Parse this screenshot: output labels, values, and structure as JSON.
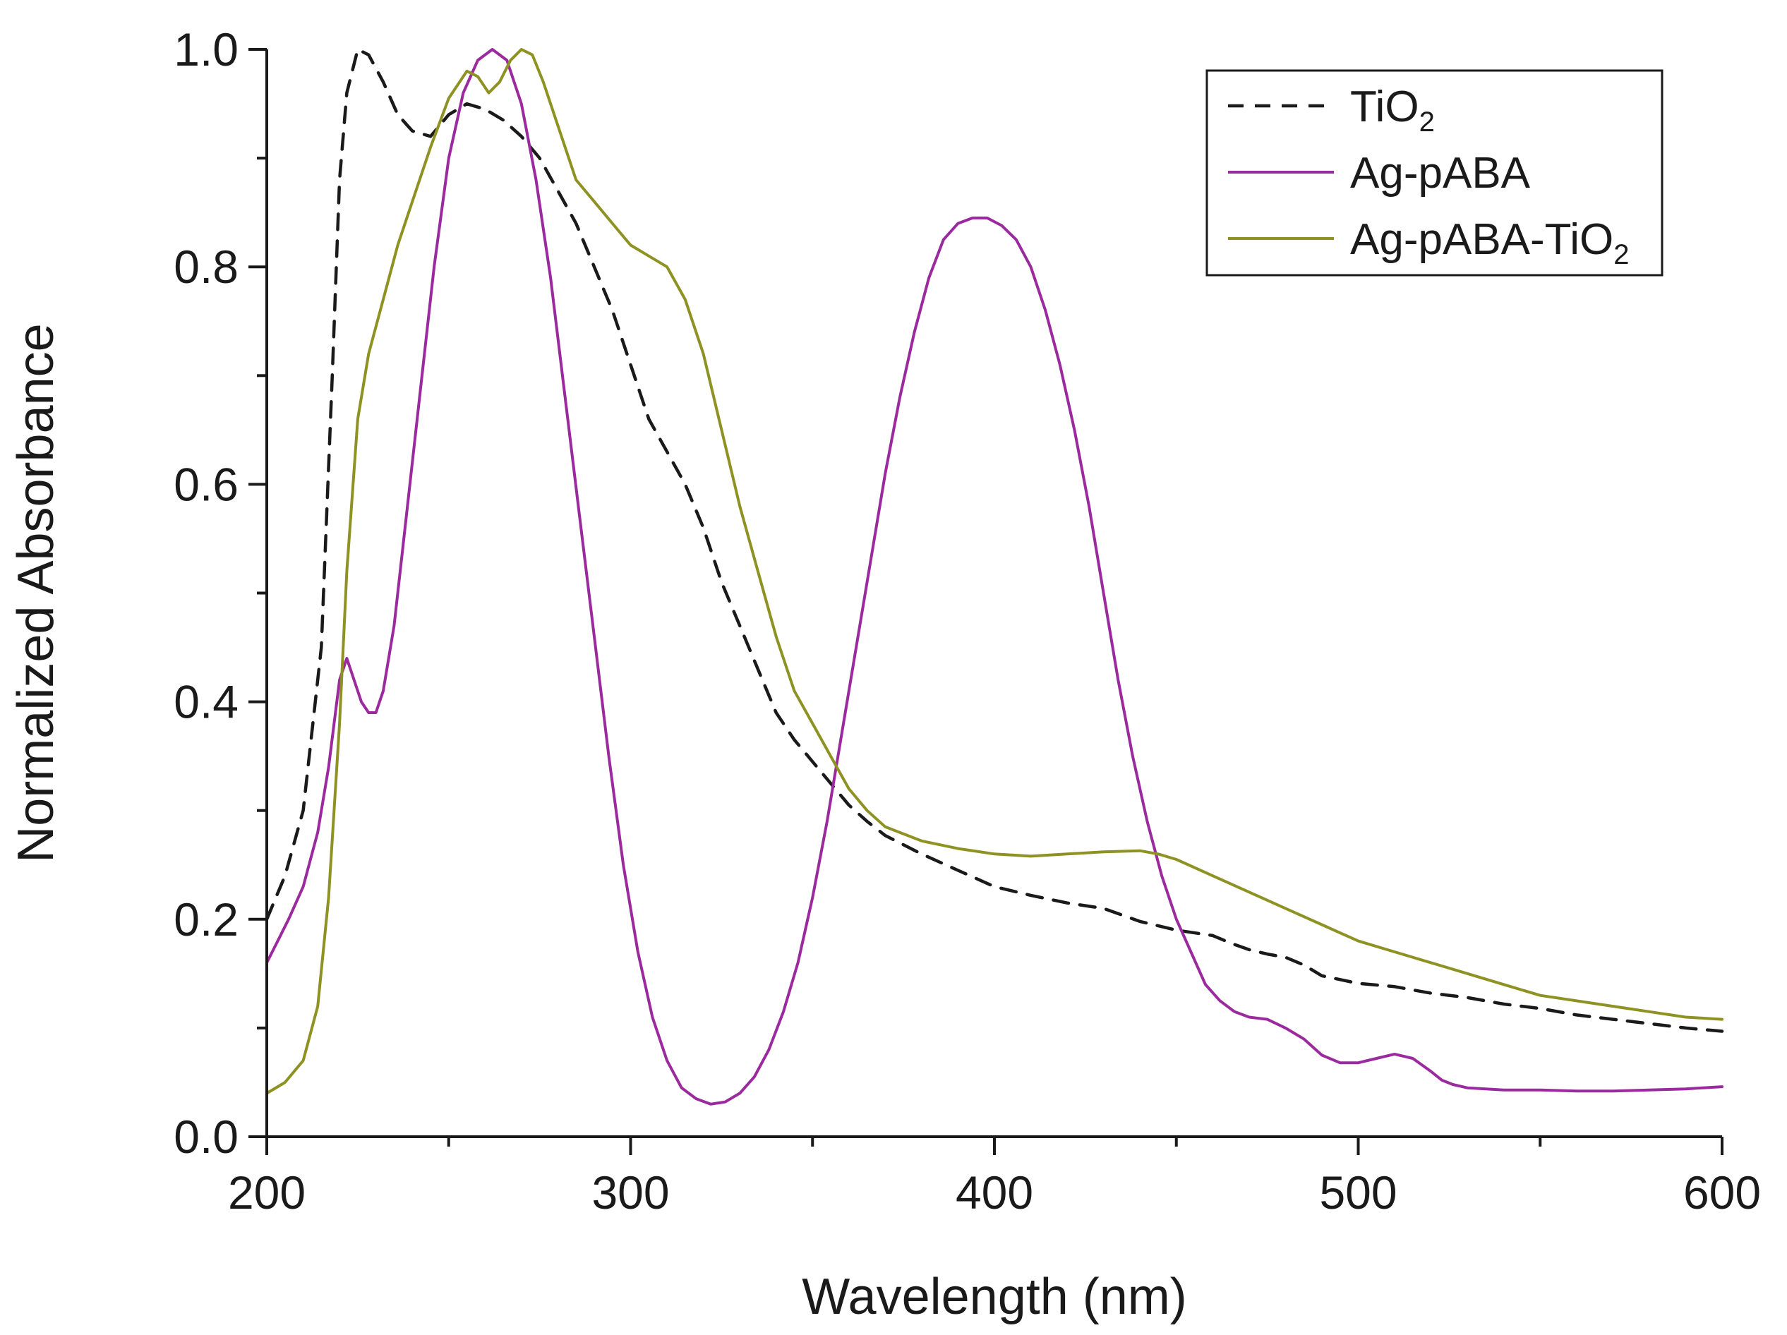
{
  "chart_data": {
    "type": "line",
    "title": "",
    "xlabel": "Wavelength (nm)",
    "ylabel": "Normalized Absorbance",
    "xlim": [
      200,
      600
    ],
    "ylim": [
      0.0,
      1.0
    ],
    "xticks": [
      200,
      300,
      400,
      500,
      600
    ],
    "xtick_labels": [
      "200",
      "300",
      "400",
      "500",
      "600"
    ],
    "yticks": [
      0.0,
      0.2,
      0.4,
      0.6,
      0.8,
      1.0
    ],
    "ytick_labels": [
      "0.0",
      "0.2",
      "0.4",
      "0.6",
      "0.8",
      "1.0"
    ],
    "grid": false,
    "legend_position": "top-right",
    "series": [
      {
        "name": "TiO2",
        "label_main": "TiO",
        "label_sub": "2",
        "color": "#1a1a1a",
        "style": "dashed",
        "x": [
          200,
          205,
          210,
          215,
          218,
          220,
          222,
          225,
          228,
          232,
          236,
          240,
          245,
          250,
          255,
          260,
          265,
          270,
          275,
          280,
          285,
          290,
          295,
          300,
          305,
          310,
          315,
          320,
          325,
          330,
          335,
          340,
          345,
          350,
          355,
          360,
          365,
          370,
          380,
          390,
          400,
          410,
          420,
          430,
          440,
          450,
          460,
          465,
          470,
          475,
          480,
          485,
          490,
          500,
          510,
          520,
          530,
          540,
          550,
          560,
          570,
          580,
          590,
          600
        ],
        "y": [
          0.2,
          0.24,
          0.3,
          0.45,
          0.7,
          0.88,
          0.96,
          1.0,
          0.995,
          0.97,
          0.94,
          0.925,
          0.92,
          0.94,
          0.95,
          0.945,
          0.935,
          0.92,
          0.9,
          0.87,
          0.84,
          0.8,
          0.76,
          0.71,
          0.66,
          0.63,
          0.6,
          0.56,
          0.51,
          0.47,
          0.43,
          0.39,
          0.365,
          0.345,
          0.325,
          0.305,
          0.29,
          0.277,
          0.26,
          0.245,
          0.23,
          0.222,
          0.215,
          0.21,
          0.198,
          0.19,
          0.185,
          0.178,
          0.172,
          0.168,
          0.165,
          0.158,
          0.148,
          0.141,
          0.138,
          0.132,
          0.128,
          0.122,
          0.118,
          0.112,
          0.108,
          0.104,
          0.1,
          0.097
        ]
      },
      {
        "name": "Ag-pABA",
        "label_main": "Ag-pABA",
        "label_sub": "",
        "color": "#9a2a9e",
        "style": "solid",
        "x": [
          200,
          203,
          206,
          210,
          214,
          217,
          220,
          222,
          224,
          226,
          228,
          230,
          232,
          235,
          238,
          242,
          246,
          250,
          254,
          258,
          262,
          266,
          270,
          274,
          278,
          282,
          286,
          290,
          294,
          298,
          302,
          306,
          310,
          314,
          318,
          322,
          326,
          330,
          334,
          338,
          342,
          346,
          350,
          354,
          358,
          362,
          366,
          370,
          374,
          378,
          382,
          386,
          390,
          394,
          398,
          402,
          406,
          410,
          414,
          418,
          422,
          426,
          430,
          434,
          438,
          442,
          446,
          450,
          454,
          458,
          462,
          466,
          470,
          475,
          480,
          485,
          490,
          495,
          500,
          505,
          510,
          515,
          520,
          523,
          526,
          530,
          535,
          540,
          550,
          560,
          570,
          580,
          590,
          600
        ],
        "y": [
          0.16,
          0.18,
          0.2,
          0.23,
          0.28,
          0.34,
          0.42,
          0.44,
          0.42,
          0.4,
          0.39,
          0.39,
          0.41,
          0.47,
          0.56,
          0.68,
          0.8,
          0.9,
          0.96,
          0.99,
          1.0,
          0.99,
          0.95,
          0.88,
          0.79,
          0.68,
          0.57,
          0.46,
          0.35,
          0.25,
          0.17,
          0.11,
          0.07,
          0.045,
          0.035,
          0.03,
          0.032,
          0.04,
          0.055,
          0.08,
          0.115,
          0.16,
          0.22,
          0.29,
          0.37,
          0.45,
          0.53,
          0.61,
          0.68,
          0.74,
          0.79,
          0.825,
          0.84,
          0.845,
          0.845,
          0.838,
          0.825,
          0.8,
          0.76,
          0.71,
          0.65,
          0.58,
          0.5,
          0.42,
          0.35,
          0.29,
          0.24,
          0.2,
          0.17,
          0.14,
          0.125,
          0.115,
          0.11,
          0.108,
          0.1,
          0.09,
          0.075,
          0.068,
          0.068,
          0.072,
          0.076,
          0.072,
          0.06,
          0.052,
          0.048,
          0.045,
          0.044,
          0.043,
          0.043,
          0.042,
          0.042,
          0.043,
          0.044,
          0.046
        ]
      },
      {
        "name": "Ag-pABA-TiO2",
        "label_main": "Ag-pABA-TiO",
        "label_sub": "2",
        "color": "#8e9223",
        "style": "solid",
        "x": [
          200,
          205,
          210,
          214,
          217,
          220,
          222,
          225,
          228,
          232,
          236,
          240,
          245,
          250,
          255,
          258,
          261,
          264,
          267,
          270,
          273,
          276,
          280,
          285,
          290,
          295,
          300,
          305,
          310,
          315,
          320,
          325,
          330,
          335,
          340,
          345,
          350,
          355,
          360,
          365,
          370,
          380,
          390,
          400,
          410,
          420,
          430,
          440,
          445,
          450,
          460,
          470,
          480,
          490,
          500,
          510,
          520,
          530,
          540,
          550,
          560,
          570,
          580,
          590,
          600
        ],
        "y": [
          0.04,
          0.05,
          0.07,
          0.12,
          0.22,
          0.38,
          0.52,
          0.66,
          0.72,
          0.77,
          0.82,
          0.86,
          0.91,
          0.955,
          0.98,
          0.975,
          0.96,
          0.97,
          0.99,
          1.0,
          0.995,
          0.97,
          0.93,
          0.88,
          0.86,
          0.84,
          0.82,
          0.81,
          0.8,
          0.77,
          0.72,
          0.65,
          0.58,
          0.52,
          0.46,
          0.41,
          0.38,
          0.35,
          0.32,
          0.3,
          0.285,
          0.272,
          0.265,
          0.26,
          0.258,
          0.26,
          0.262,
          0.263,
          0.26,
          0.255,
          0.24,
          0.225,
          0.21,
          0.195,
          0.18,
          0.17,
          0.16,
          0.15,
          0.14,
          0.13,
          0.125,
          0.12,
          0.115,
          0.11,
          0.108
        ]
      }
    ]
  }
}
